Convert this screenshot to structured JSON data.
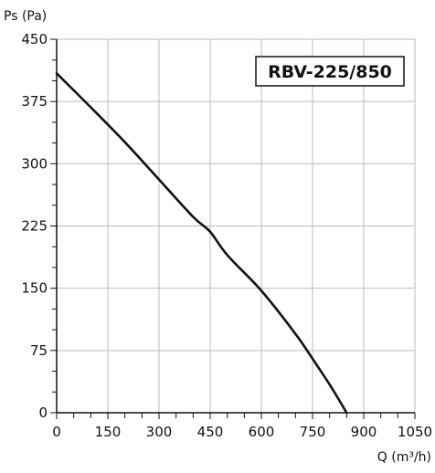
{
  "chart_data": {
    "type": "line",
    "ylabel": "Ps (Pa)",
    "xlabel": "Q (m³/h)",
    "label_box": "RBV-225/850",
    "xlim": [
      0,
      1050
    ],
    "ylim": [
      0,
      450
    ],
    "x_ticks": [
      0,
      150,
      300,
      450,
      600,
      750,
      900,
      1050
    ],
    "y_ticks": [
      0,
      75,
      150,
      225,
      300,
      375,
      450
    ],
    "x_tick_labels": [
      "0",
      "150",
      "300",
      "450",
      "600",
      "750",
      "900",
      "1050"
    ],
    "y_tick_labels": [
      "0",
      "75",
      "150",
      "225",
      "300",
      "375",
      "450"
    ],
    "x_minor_step": 50,
    "y_minor_step": 25,
    "grid": true,
    "series": [
      {
        "x": [
          0,
          100,
          200,
          300,
          400,
          450,
          500,
          600,
          700,
          750,
          800,
          850
        ],
        "y": [
          409,
          368,
          326,
          281,
          236,
          218,
          190,
          147,
          95,
          65,
          34,
          0
        ]
      }
    ],
    "colors": {
      "line": "#111111",
      "grid": "#bbbbbb",
      "axis": "#111111"
    }
  }
}
